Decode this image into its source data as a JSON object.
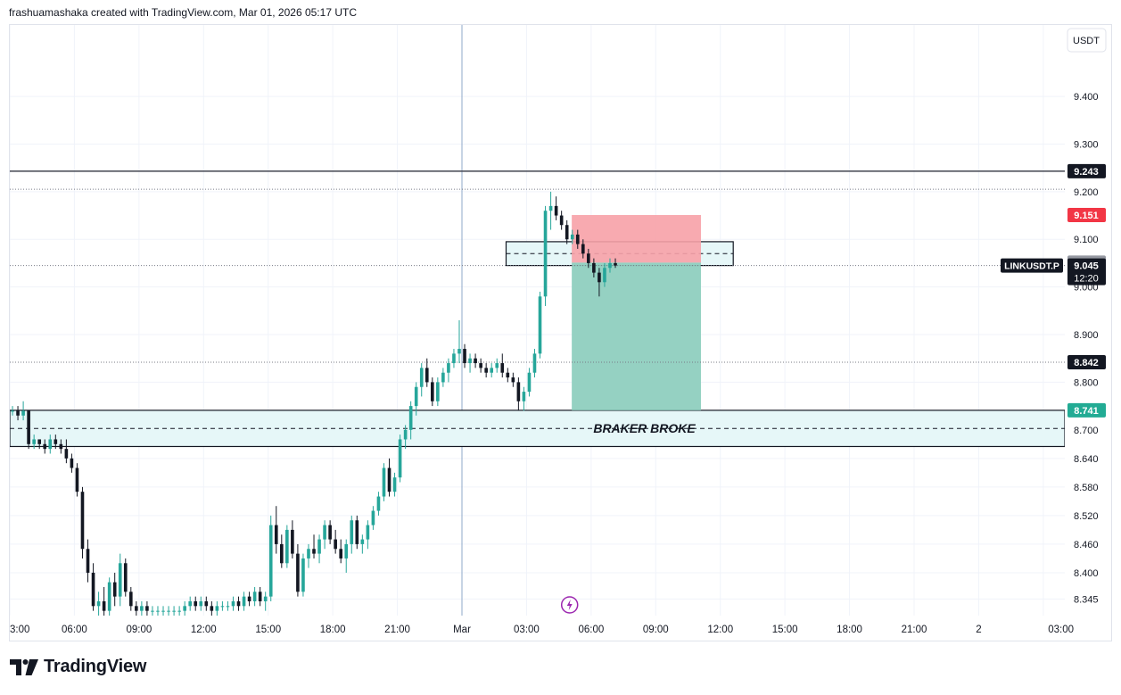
{
  "header": {
    "caption": "frashuamashaka created with TradingView.com, Mar 01, 2026 05:17 UTC"
  },
  "brand": {
    "name": "TradingView"
  },
  "colors": {
    "up": "#26a69a",
    "down": "#131722",
    "stop_zone": "#f7a1a7",
    "target_zone": "#8fcfbf",
    "zone_fill": "#e6f7f8",
    "grid": "#f0f3fa",
    "text": "#131722",
    "session_line": "#8fa9c9",
    "stop_badge": "#f23645",
    "target_badge": "#22ab94",
    "price_badge_dark": "#131722",
    "entry_badge": "#9598a1",
    "flash_icon": "#9c27b0"
  },
  "chart_data": {
    "type": "candlestick",
    "symbol": "LINKUSDT.P",
    "currency": "USDT",
    "ylim": [
      8.31,
      9.55
    ],
    "y_ticks": [
      "9.400",
      "9.300",
      "9.200",
      "9.100",
      "9.000",
      "8.900",
      "8.800",
      "8.700",
      "8.640",
      "8.580",
      "8.520",
      "8.460",
      "8.400",
      "8.345"
    ],
    "x_ticks": [
      "3:00",
      "06:00",
      "09:00",
      "12:00",
      "15:00",
      "18:00",
      "21:00",
      "Mar",
      "03:00",
      "06:00",
      "09:00",
      "12:00",
      "15:00",
      "18:00",
      "21:00",
      "2",
      "03:00"
    ],
    "x_tick_positions_hours": [
      3,
      6,
      9,
      12,
      15,
      18,
      21,
      24,
      27,
      30,
      33,
      36,
      39,
      42,
      45,
      48,
      51
    ],
    "x_range_hours": [
      3,
      52
    ],
    "candle_interval_hours": 0.25,
    "first_candle_hour": 3,
    "candles": [
      [
        8.74,
        8.75,
        8.73,
        8.74
      ],
      [
        8.74,
        8.75,
        8.72,
        8.73
      ],
      [
        8.73,
        8.76,
        8.72,
        8.74
      ],
      [
        8.74,
        8.74,
        8.66,
        8.67
      ],
      [
        8.67,
        8.69,
        8.66,
        8.68
      ],
      [
        8.68,
        8.68,
        8.66,
        8.67
      ],
      [
        8.67,
        8.68,
        8.65,
        8.66
      ],
      [
        8.66,
        8.69,
        8.65,
        8.68
      ],
      [
        8.68,
        8.69,
        8.66,
        8.67
      ],
      [
        8.67,
        8.68,
        8.65,
        8.66
      ],
      [
        8.66,
        8.68,
        8.63,
        8.64
      ],
      [
        8.64,
        8.65,
        8.61,
        8.62
      ],
      [
        8.62,
        8.63,
        8.56,
        8.57
      ],
      [
        8.57,
        8.58,
        8.43,
        8.45
      ],
      [
        8.45,
        8.47,
        8.38,
        8.4
      ],
      [
        8.4,
        8.42,
        8.32,
        8.33
      ],
      [
        8.33,
        8.36,
        8.31,
        8.34
      ],
      [
        8.34,
        8.37,
        8.31,
        8.32
      ],
      [
        8.32,
        8.39,
        8.31,
        8.38
      ],
      [
        8.38,
        8.4,
        8.33,
        8.35
      ],
      [
        8.35,
        8.44,
        8.33,
        8.42
      ],
      [
        8.42,
        8.43,
        8.35,
        8.36
      ],
      [
        8.36,
        8.37,
        8.32,
        8.33
      ],
      [
        8.33,
        8.34,
        8.31,
        8.32
      ],
      [
        8.32,
        8.34,
        8.31,
        8.33
      ],
      [
        8.33,
        8.34,
        8.31,
        8.32
      ],
      [
        8.32,
        8.33,
        8.31,
        8.32
      ],
      [
        8.32,
        8.33,
        8.31,
        8.32
      ],
      [
        8.32,
        8.33,
        8.31,
        8.32
      ],
      [
        8.32,
        8.33,
        8.31,
        8.32
      ],
      [
        8.32,
        8.33,
        8.31,
        8.32
      ],
      [
        8.32,
        8.33,
        8.31,
        8.32
      ],
      [
        8.32,
        8.34,
        8.31,
        8.33
      ],
      [
        8.33,
        8.35,
        8.32,
        8.34
      ],
      [
        8.34,
        8.35,
        8.32,
        8.33
      ],
      [
        8.33,
        8.35,
        8.32,
        8.34
      ],
      [
        8.34,
        8.35,
        8.32,
        8.33
      ],
      [
        8.33,
        8.34,
        8.31,
        8.32
      ],
      [
        8.32,
        8.34,
        8.31,
        8.33
      ],
      [
        8.33,
        8.34,
        8.32,
        8.33
      ],
      [
        8.33,
        8.34,
        8.32,
        8.33
      ],
      [
        8.33,
        8.35,
        8.32,
        8.34
      ],
      [
        8.34,
        8.35,
        8.32,
        8.33
      ],
      [
        8.33,
        8.36,
        8.32,
        8.35
      ],
      [
        8.35,
        8.36,
        8.33,
        8.34
      ],
      [
        8.34,
        8.37,
        8.33,
        8.36
      ],
      [
        8.36,
        8.37,
        8.33,
        8.34
      ],
      [
        8.34,
        8.36,
        8.32,
        8.35
      ],
      [
        8.35,
        8.52,
        8.34,
        8.5
      ],
      [
        8.5,
        8.54,
        8.44,
        8.46
      ],
      [
        8.46,
        8.48,
        8.41,
        8.42
      ],
      [
        8.42,
        8.5,
        8.41,
        8.49
      ],
      [
        8.49,
        8.51,
        8.43,
        8.44
      ],
      [
        8.44,
        8.46,
        8.35,
        8.36
      ],
      [
        8.36,
        8.44,
        8.35,
        8.43
      ],
      [
        8.43,
        8.46,
        8.41,
        8.45
      ],
      [
        8.45,
        8.48,
        8.43,
        8.44
      ],
      [
        8.44,
        8.48,
        8.42,
        8.47
      ],
      [
        8.47,
        8.51,
        8.45,
        8.5
      ],
      [
        8.5,
        8.51,
        8.46,
        8.47
      ],
      [
        8.47,
        8.49,
        8.44,
        8.45
      ],
      [
        8.45,
        8.47,
        8.42,
        8.43
      ],
      [
        8.43,
        8.47,
        8.4,
        8.46
      ],
      [
        8.46,
        8.52,
        8.44,
        8.51
      ],
      [
        8.51,
        8.52,
        8.45,
        8.46
      ],
      [
        8.46,
        8.48,
        8.44,
        8.47
      ],
      [
        8.47,
        8.51,
        8.45,
        8.5
      ],
      [
        8.5,
        8.54,
        8.49,
        8.53
      ],
      [
        8.53,
        8.57,
        8.52,
        8.56
      ],
      [
        8.56,
        8.63,
        8.55,
        8.62
      ],
      [
        8.62,
        8.64,
        8.56,
        8.57
      ],
      [
        8.57,
        8.61,
        8.56,
        8.6
      ],
      [
        8.6,
        8.69,
        8.59,
        8.68
      ],
      [
        8.68,
        8.71,
        8.66,
        8.7
      ],
      [
        8.7,
        8.76,
        8.68,
        8.75
      ],
      [
        8.75,
        8.8,
        8.73,
        8.79
      ],
      [
        8.79,
        8.84,
        8.77,
        8.83
      ],
      [
        8.83,
        8.85,
        8.79,
        8.8
      ],
      [
        8.8,
        8.81,
        8.75,
        8.76
      ],
      [
        8.76,
        8.81,
        8.75,
        8.8
      ],
      [
        8.8,
        8.83,
        8.79,
        8.82
      ],
      [
        8.82,
        8.85,
        8.8,
        8.84
      ],
      [
        8.84,
        8.87,
        8.83,
        8.86
      ],
      [
        8.86,
        8.93,
        8.84,
        8.87
      ],
      [
        8.87,
        8.88,
        8.83,
        8.84
      ],
      [
        8.84,
        8.86,
        8.82,
        8.85
      ],
      [
        8.85,
        8.86,
        8.83,
        8.84
      ],
      [
        8.84,
        8.85,
        8.82,
        8.83
      ],
      [
        8.83,
        8.84,
        8.81,
        8.82
      ],
      [
        8.82,
        8.84,
        8.81,
        8.83
      ],
      [
        8.83,
        8.85,
        8.82,
        8.84
      ],
      [
        8.84,
        8.86,
        8.81,
        8.82
      ],
      [
        8.82,
        8.83,
        8.8,
        8.81
      ],
      [
        8.81,
        8.82,
        8.79,
        8.8
      ],
      [
        8.8,
        8.81,
        8.74,
        8.76
      ],
      [
        8.76,
        8.79,
        8.74,
        8.78
      ],
      [
        8.78,
        8.83,
        8.77,
        8.82
      ],
      [
        8.82,
        8.87,
        8.81,
        8.86
      ],
      [
        8.86,
        8.99,
        8.85,
        8.98
      ],
      [
        8.98,
        9.17,
        8.96,
        9.16
      ],
      [
        9.16,
        9.2,
        9.12,
        9.17
      ],
      [
        9.17,
        9.19,
        9.14,
        9.15
      ],
      [
        9.15,
        9.16,
        9.12,
        9.13
      ],
      [
        9.13,
        9.14,
        9.09,
        9.1
      ],
      [
        9.1,
        9.12,
        9.09,
        9.11
      ],
      [
        9.11,
        9.12,
        9.08,
        9.09
      ],
      [
        9.09,
        9.1,
        9.06,
        9.07
      ],
      [
        9.07,
        9.08,
        9.04,
        9.05
      ],
      [
        9.05,
        9.06,
        9.02,
        9.03
      ],
      [
        9.03,
        9.04,
        8.98,
        9.01
      ],
      [
        9.01,
        9.05,
        9.0,
        9.04
      ],
      [
        9.04,
        9.06,
        9.03,
        9.05
      ],
      [
        9.05,
        9.06,
        9.04,
        9.045
      ]
    ],
    "levels": [
      {
        "price": 9.243,
        "label": "9.243",
        "style": "solid"
      },
      {
        "price": 9.205,
        "style": "dotted"
      },
      {
        "price": 9.045,
        "style": "dotted"
      },
      {
        "price": 8.842,
        "label": "8.842",
        "style": "dotted"
      }
    ],
    "zones": [
      {
        "name": "braker-zone",
        "top": 8.741,
        "bottom": 8.665,
        "mid": 8.703,
        "x_start_hour": 3,
        "x_end_hour": 52,
        "label": "BRAKER BROKE"
      },
      {
        "name": "entry-zone",
        "top": 9.095,
        "bottom": 9.045,
        "mid": 9.07,
        "x_start_hour": 26.05,
        "x_end_hour": 36.6
      }
    ],
    "position": {
      "type": "short",
      "entry": 9.051,
      "stop": 9.151,
      "target": 8.741,
      "x_start_hour": 29.1,
      "x_end_hour": 35.1
    },
    "session_break_hour": 24,
    "last_price": {
      "value": "9.045",
      "countdown": "12:20"
    },
    "price_badges": [
      {
        "text": "9.243",
        "price": 9.243,
        "kind": "dark"
      },
      {
        "text": "9.151",
        "price": 9.151,
        "kind": "stop"
      },
      {
        "text": "9.051",
        "price": 9.051,
        "kind": "entry"
      },
      {
        "text": "8.842",
        "price": 8.842,
        "kind": "dark"
      },
      {
        "text": "8.741",
        "price": 8.741,
        "kind": "target"
      }
    ]
  }
}
